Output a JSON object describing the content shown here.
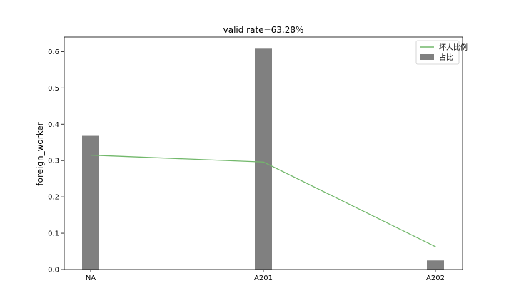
{
  "chart_data": {
    "type": "bar",
    "title": "valid rate=63.28%",
    "xlabel": "",
    "ylabel": "foreign_worker",
    "categories": [
      "NA",
      "A201",
      "A202"
    ],
    "ylim": [
      0,
      0.64
    ],
    "yticks": [
      0.0,
      0.1,
      0.2,
      0.3,
      0.4,
      0.5,
      0.6
    ],
    "ytick_labels": [
      "0.0",
      "0.1",
      "0.2",
      "0.3",
      "0.4",
      "0.5",
      "0.6"
    ],
    "series": [
      {
        "name": "占比",
        "kind": "bar",
        "color": "#808080",
        "values": [
          0.368,
          0.608,
          0.025
        ]
      },
      {
        "name": "坏人比例",
        "kind": "line",
        "color": "#72b86b",
        "values": [
          0.315,
          0.296,
          0.063
        ]
      }
    ],
    "legend": {
      "position": "top-right",
      "entries": [
        {
          "label": "坏人比例",
          "kind": "line",
          "color": "#72b86b"
        },
        {
          "label": "占比",
          "kind": "bar",
          "color": "#808080"
        }
      ]
    }
  }
}
